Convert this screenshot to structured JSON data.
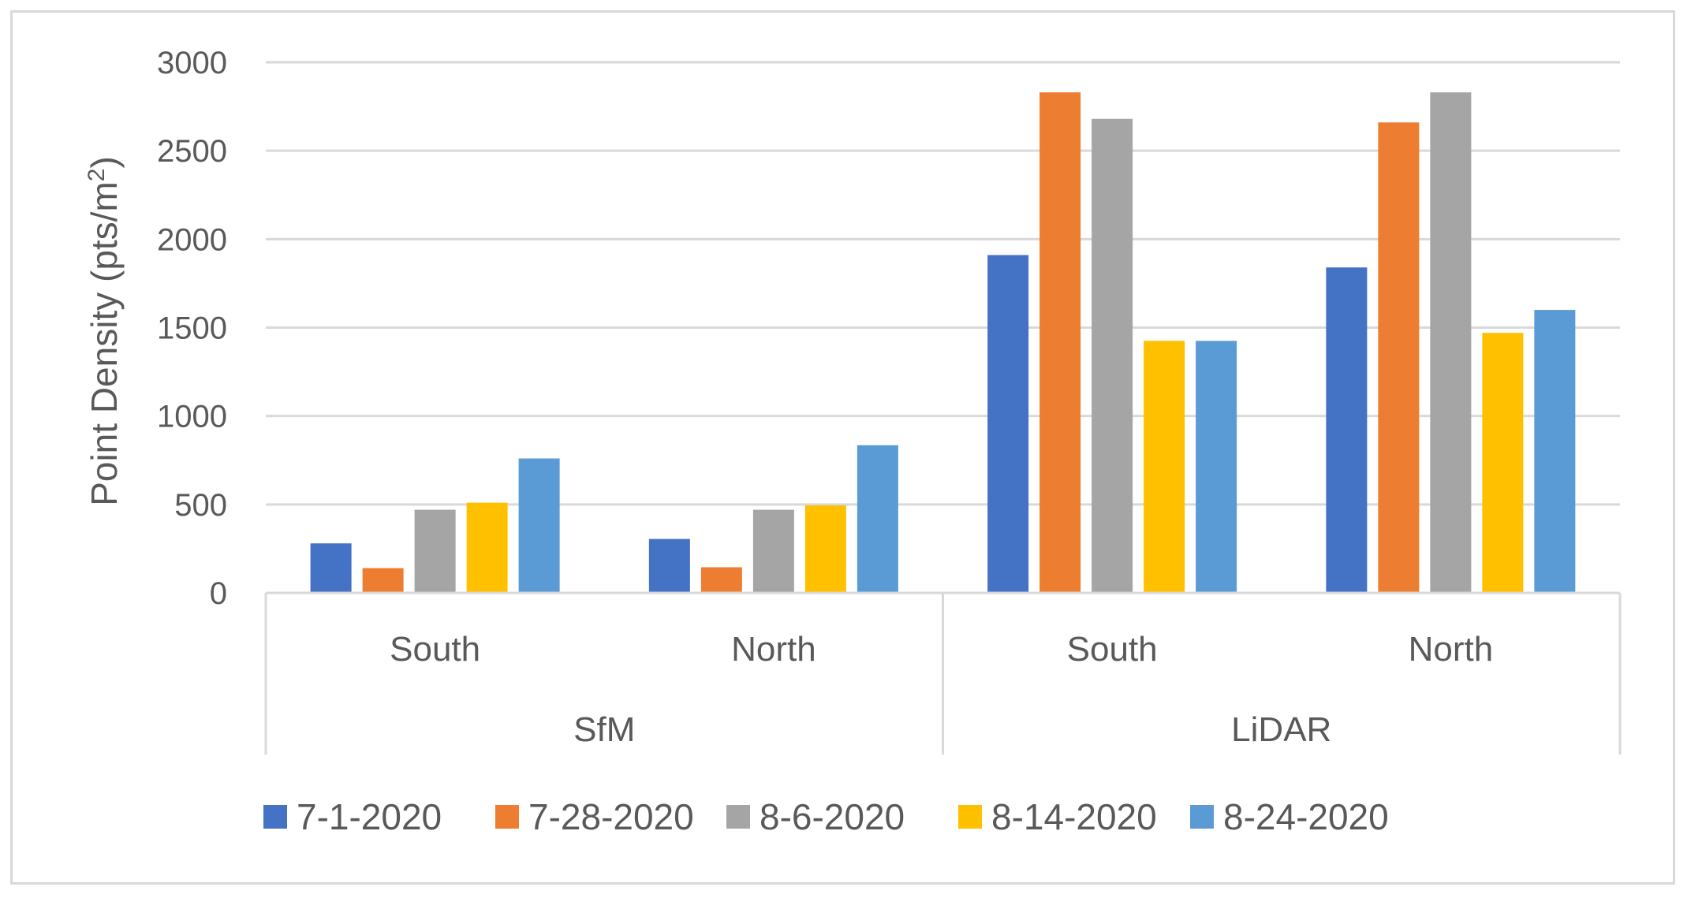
{
  "chart_data": {
    "type": "bar",
    "title": "",
    "ylabel": "Point Density (pts/m²)",
    "ylabel_main": "Point Density (pts/m",
    "ylabel_sup": "2",
    "ylabel_tail": ")",
    "ylim": [
      0,
      3000
    ],
    "yticks": [
      "0",
      "500",
      "1000",
      "1500",
      "2000",
      "2500",
      "3000"
    ],
    "grid": true,
    "legend_position": "bottom",
    "groups": [
      {
        "label": "SfM",
        "categories": [
          "South",
          "North"
        ]
      },
      {
        "label": "LiDAR",
        "categories": [
          "South",
          "North"
        ]
      }
    ],
    "categories": [
      "South",
      "North",
      "South",
      "North"
    ],
    "series": [
      {
        "name": "7-1-2020",
        "color": "#4472c4",
        "values": [
          280,
          305,
          1910,
          1840
        ]
      },
      {
        "name": "7-28-2020",
        "color": "#ed7d31",
        "values": [
          140,
          145,
          2830,
          2660
        ]
      },
      {
        "name": "8-6-2020",
        "color": "#a5a5a5",
        "values": [
          470,
          470,
          2680,
          2830
        ]
      },
      {
        "name": "8-14-2020",
        "color": "#ffc000",
        "values": [
          510,
          495,
          1425,
          1470
        ]
      },
      {
        "name": "8-24-2020",
        "color": "#5b9bd5",
        "values": [
          760,
          835,
          1425,
          1600
        ]
      }
    ]
  }
}
